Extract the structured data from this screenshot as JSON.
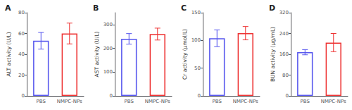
{
  "chart_data": [
    {
      "type": "bar",
      "title": "A",
      "ylabel": "ALT activity (U/L)",
      "categories": [
        "PBS",
        "NMPC-NPs"
      ],
      "values": [
        53,
        60
      ],
      "errors": [
        8,
        10
      ],
      "colors": [
        "#5555ee",
        "#ee3333"
      ],
      "ylim": [
        0,
        80
      ],
      "yticks": [
        0,
        20,
        40,
        60,
        80
      ],
      "grid": false
    },
    {
      "type": "bar",
      "title": "B",
      "ylabel": "AST activity (U/L)",
      "categories": [
        "PBS",
        "NMPC-NPs"
      ],
      "values": [
        240,
        260
      ],
      "errors": [
        22,
        25
      ],
      "colors": [
        "#5555ee",
        "#ee3333"
      ],
      "ylim": [
        0,
        350
      ],
      "yticks": [
        0,
        100,
        200,
        300
      ],
      "grid": false
    },
    {
      "type": "bar",
      "title": "C",
      "ylabel": "Cr activity (μmol/L)",
      "categories": [
        "PBS",
        "NMPC-NPs"
      ],
      "values": [
        104,
        113
      ],
      "errors": [
        15,
        12
      ],
      "colors": [
        "#5555ee",
        "#ee3333"
      ],
      "ylim": [
        0,
        150
      ],
      "yticks": [
        0,
        50,
        100,
        150
      ],
      "grid": false
    },
    {
      "type": "bar",
      "title": "D",
      "ylabel": "BUN activity (μg/mL)",
      "categories": [
        "PBS",
        "NMPC-NPs"
      ],
      "values": [
        168,
        205
      ],
      "errors": [
        10,
        35
      ],
      "colors": [
        "#5555ee",
        "#ee3333"
      ],
      "ylim": [
        0,
        320
      ],
      "yticks": [
        0,
        80,
        160,
        240,
        320
      ],
      "grid": false
    }
  ]
}
